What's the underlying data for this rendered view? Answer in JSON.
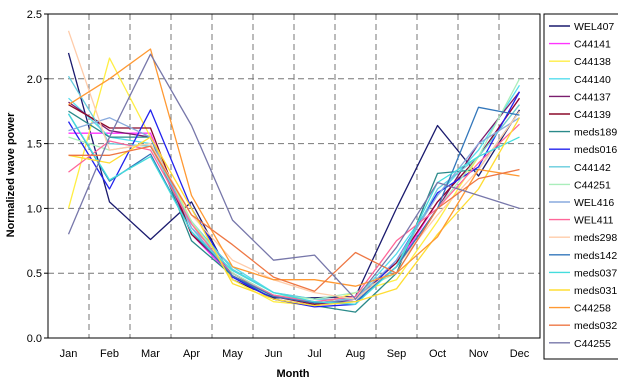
{
  "chart_data": {
    "type": "line",
    "xlabel": "Month",
    "ylabel": "Normalized wave power",
    "ylim": [
      0,
      2.5
    ],
    "yticks": [
      "0.0",
      "0.5",
      "1.0",
      "1.5",
      "2.0",
      "2.5"
    ],
    "categories": [
      "Jan",
      "Feb",
      "Mar",
      "Apr",
      "May",
      "Jun",
      "Jul",
      "Aug",
      "Sep",
      "Oct",
      "Nov",
      "Dec"
    ],
    "grid": true,
    "legend_position": "right",
    "series": [
      {
        "name": "WEL407",
        "color": "#1a1a6e",
        "values": [
          2.2,
          1.05,
          0.76,
          1.05,
          0.45,
          0.31,
          0.31,
          0.32,
          1.0,
          1.64,
          1.25,
          1.76
        ]
      },
      {
        "name": "C44141",
        "color": "#ff33ff",
        "values": [
          1.58,
          1.58,
          1.58,
          0.8,
          0.47,
          0.3,
          0.25,
          0.3,
          0.55,
          1.05,
          1.4,
          1.85
        ]
      },
      {
        "name": "C44138",
        "color": "#ffee44",
        "values": [
          1.0,
          2.16,
          1.55,
          0.9,
          0.45,
          0.28,
          0.25,
          0.35,
          0.45,
          0.9,
          1.4,
          1.8
        ]
      },
      {
        "name": "C44140",
        "color": "#55ddee",
        "values": [
          1.85,
          1.55,
          1.5,
          0.85,
          0.55,
          0.35,
          0.3,
          0.3,
          0.65,
          1.1,
          1.45,
          1.95
        ]
      },
      {
        "name": "C44137",
        "color": "#7a1e6e",
        "values": [
          1.82,
          1.6,
          1.55,
          0.8,
          0.5,
          0.33,
          0.27,
          0.3,
          0.55,
          1.0,
          1.5,
          1.9
        ]
      },
      {
        "name": "C44139",
        "color": "#8b0a2a",
        "values": [
          1.8,
          1.62,
          1.62,
          0.8,
          0.5,
          0.32,
          0.26,
          0.3,
          0.58,
          1.05,
          1.4,
          1.85
        ]
      },
      {
        "name": "meds189",
        "color": "#2a8a8a",
        "values": [
          1.75,
          1.55,
          1.55,
          0.75,
          0.48,
          0.3,
          0.25,
          0.2,
          0.5,
          1.27,
          1.3,
          1.75
        ]
      },
      {
        "name": "meds016",
        "color": "#2222ee",
        "values": [
          1.67,
          1.15,
          1.76,
          1.0,
          0.47,
          0.3,
          0.24,
          0.26,
          0.6,
          1.12,
          1.32,
          1.9
        ]
      },
      {
        "name": "C44142",
        "color": "#66ccdd",
        "values": [
          2.02,
          1.5,
          1.48,
          0.9,
          0.53,
          0.35,
          0.3,
          0.3,
          0.55,
          1.15,
          1.4,
          1.8
        ]
      },
      {
        "name": "C44251",
        "color": "#aaeebb",
        "values": [
          1.55,
          1.45,
          1.5,
          0.9,
          0.5,
          0.33,
          0.3,
          0.35,
          0.5,
          1.0,
          1.4,
          2.0
        ]
      },
      {
        "name": "WEL416",
        "color": "#88aadd",
        "values": [
          1.6,
          1.7,
          1.55,
          0.85,
          0.48,
          0.33,
          0.27,
          0.3,
          0.6,
          1.1,
          1.5,
          1.7
        ]
      },
      {
        "name": "WEL411",
        "color": "#ff6699",
        "values": [
          1.28,
          1.52,
          1.45,
          0.88,
          0.48,
          0.33,
          0.28,
          0.32,
          0.75,
          1.0,
          1.35,
          1.65
        ]
      },
      {
        "name": "meds298",
        "color": "#ffccaa",
        "values": [
          2.37,
          1.45,
          1.5,
          0.95,
          0.6,
          0.45,
          0.35,
          0.3,
          0.55,
          0.95,
          1.3,
          1.75
        ]
      },
      {
        "name": "meds142",
        "color": "#3377bb",
        "values": [
          1.73,
          1.21,
          1.42,
          0.82,
          0.48,
          0.32,
          0.27,
          0.28,
          0.55,
          1.0,
          1.78,
          1.72
        ]
      },
      {
        "name": "meds037",
        "color": "#44dddd",
        "values": [
          1.73,
          1.22,
          1.4,
          0.82,
          0.52,
          0.35,
          0.28,
          0.26,
          0.55,
          1.2,
          1.4,
          1.55
        ]
      },
      {
        "name": "meds031",
        "color": "#ffdd33",
        "values": [
          1.41,
          1.35,
          1.55,
          1.0,
          0.42,
          0.3,
          0.25,
          0.28,
          0.38,
          0.8,
          1.15,
          1.7
        ]
      },
      {
        "name": "C44258",
        "color": "#ff9933",
        "values": [
          1.8,
          2.0,
          2.23,
          1.1,
          0.55,
          0.45,
          0.45,
          0.4,
          0.5,
          0.78,
          1.3,
          1.25
        ]
      },
      {
        "name": "meds032",
        "color": "#ee7744",
        "values": [
          1.41,
          1.41,
          1.48,
          0.95,
          0.72,
          0.47,
          0.36,
          0.66,
          0.5,
          1.0,
          1.23,
          1.3
        ]
      },
      {
        "name": "C44255",
        "color": "#7777aa",
        "values": [
          0.8,
          1.55,
          2.19,
          1.64,
          0.91,
          0.6,
          0.64,
          0.3,
          0.7,
          1.2,
          1.1,
          1.0
        ]
      }
    ]
  }
}
